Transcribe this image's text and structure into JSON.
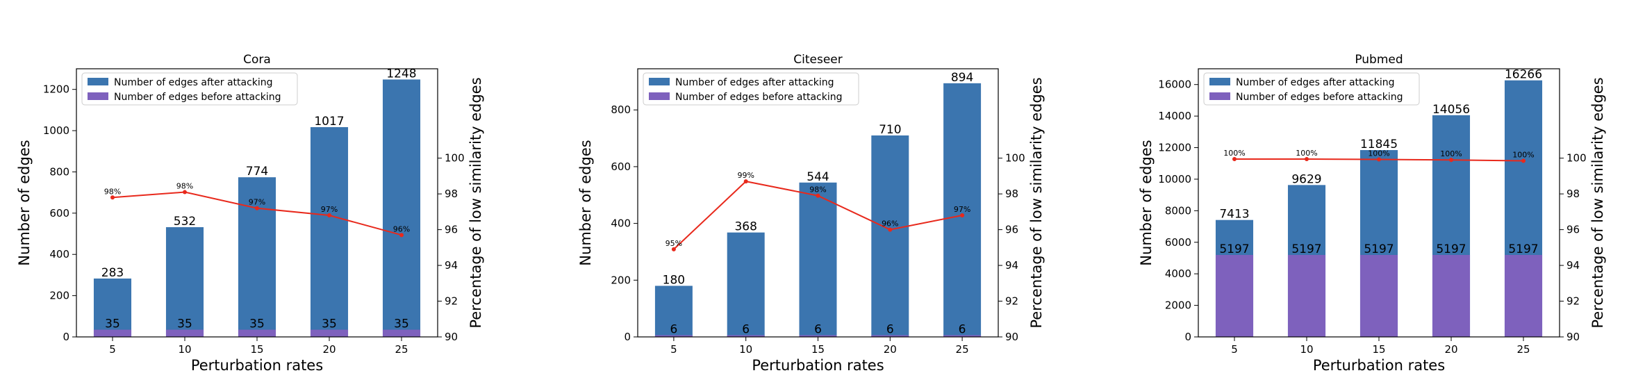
{
  "chart_data": [
    {
      "type": "bar",
      "title": "Cora",
      "xlabel": "Perturbation rates",
      "ylabel": "Number of edges",
      "y2label": "Percentage of low similarity edges",
      "categories": [
        "5",
        "10",
        "15",
        "20",
        "25"
      ],
      "ylim": [
        0,
        1300
      ],
      "yticks": [
        0,
        200,
        400,
        600,
        800,
        1000,
        1200
      ],
      "y2lim": [
        90,
        105
      ],
      "y2ticks": [
        90,
        92,
        94,
        96,
        98,
        100
      ],
      "series": [
        {
          "name": "Number of edges after attacking",
          "kind": "bar",
          "color": "#3b75af",
          "values": [
            283,
            532,
            774,
            1017,
            1248
          ],
          "labels": [
            "283",
            "532",
            "774",
            "1017",
            "1248"
          ]
        },
        {
          "name": "Number of edges before attacking",
          "kind": "bar",
          "color": "#7e61bd",
          "values": [
            35,
            35,
            35,
            35,
            35
          ],
          "labels": [
            "35",
            "35",
            "35",
            "35",
            "35"
          ]
        },
        {
          "kind": "line",
          "axis": "right",
          "color": "#e8291c",
          "values": [
            97.8,
            98.1,
            97.2,
            96.8,
            95.7
          ],
          "labels": [
            "98%",
            "98%",
            "97%",
            "97%",
            "96%"
          ]
        }
      ],
      "legend": "top-left"
    },
    {
      "type": "bar",
      "title": "Citeseer",
      "xlabel": "Perturbation rates",
      "ylabel": "Number of edges",
      "y2label": "Percentage of low similarity edges",
      "categories": [
        "5",
        "10",
        "15",
        "20",
        "25"
      ],
      "ylim": [
        0,
        945
      ],
      "yticks": [
        0,
        200,
        400,
        600,
        800
      ],
      "y2lim": [
        90,
        105
      ],
      "y2ticks": [
        90,
        92,
        94,
        96,
        98,
        100
      ],
      "series": [
        {
          "name": "Number of edges after attacking",
          "kind": "bar",
          "color": "#3b75af",
          "values": [
            180,
            368,
            544,
            710,
            894
          ],
          "labels": [
            "180",
            "368",
            "544",
            "710",
            "894"
          ]
        },
        {
          "name": "Number of edges before attacking",
          "kind": "bar",
          "color": "#7e61bd",
          "values": [
            6,
            6,
            6,
            6,
            6
          ],
          "labels": [
            "6",
            "6",
            "6",
            "6",
            "6"
          ]
        },
        {
          "kind": "line",
          "axis": "right",
          "color": "#e8291c",
          "values": [
            94.9,
            98.7,
            97.9,
            96.0,
            96.8
          ],
          "labels": [
            "95%",
            "99%",
            "98%",
            "96%",
            "97%"
          ]
        }
      ],
      "legend": "top-left"
    },
    {
      "type": "bar",
      "title": "Pubmed",
      "xlabel": "Perturbation rates",
      "ylabel": "Number of edges",
      "y2label": "Percentage of low similarity edges",
      "categories": [
        "5",
        "10",
        "15",
        "20",
        "25"
      ],
      "ylim": [
        0,
        17000
      ],
      "yticks": [
        0,
        2000,
        4000,
        6000,
        8000,
        10000,
        12000,
        14000,
        16000
      ],
      "y2lim": [
        90,
        105
      ],
      "y2ticks": [
        90,
        92,
        94,
        96,
        98,
        100
      ],
      "series": [
        {
          "name": "Number of edges after attacking",
          "kind": "bar",
          "color": "#3b75af",
          "values": [
            7413,
            9629,
            11845,
            14056,
            16266
          ],
          "labels": [
            "7413",
            "9629",
            "11845",
            "14056",
            "16266"
          ]
        },
        {
          "name": "Number of edges before attacking",
          "kind": "bar",
          "color": "#7e61bd",
          "values": [
            5197,
            5197,
            5197,
            5197,
            5197
          ],
          "labels": [
            "5197",
            "5197",
            "5197",
            "5197",
            "5197"
          ]
        },
        {
          "kind": "line",
          "axis": "right",
          "color": "#e8291c",
          "values": [
            99.95,
            99.95,
            99.93,
            99.9,
            99.85
          ],
          "labels": [
            "100%",
            "100%",
            "100%",
            "100%",
            "100%"
          ]
        }
      ],
      "legend": "top-left"
    }
  ]
}
